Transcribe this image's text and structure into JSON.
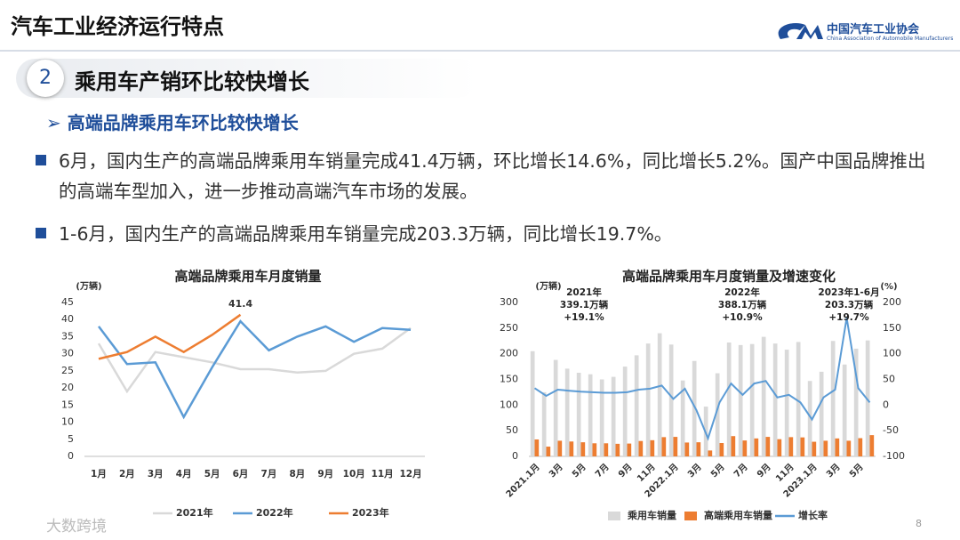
{
  "header": {
    "title": "汽车工业经济运行特点",
    "logo": "中国汽车工业协会",
    "logo_en": "China Association of Automobile Manufacturers"
  },
  "section": {
    "number": "2",
    "title": "乘用车产销环比较快增长"
  },
  "subtitle": "高端品牌乘用车环比较快增长",
  "bullets": [
    "6月，国内生产的高端品牌乘用车销量完成41.4万辆，环比增长14.6%，同比增长5.2%。国产中国品牌推出的高端车型加入，进一步推动高端汽车市场的发展。",
    "1-6月，国内生产的高端品牌乘用车销量完成203.3万辆，同比增长19.7%。"
  ],
  "chart_data": [
    {
      "type": "line",
      "title": "高端品牌乘用车月度销量",
      "y_label": "(万辆)",
      "categories": [
        "1月",
        "2月",
        "3月",
        "4月",
        "5月",
        "6月",
        "7月",
        "8月",
        "9月",
        "10月",
        "11月",
        "12月"
      ],
      "ylim": [
        0,
        45
      ],
      "yticks": [
        0,
        5,
        10,
        15,
        20,
        25,
        30,
        35,
        40,
        45
      ],
      "grid": false,
      "legend": "bottom",
      "series": [
        {
          "name": "2021年",
          "color": "#d9d9d9",
          "values": [
            33,
            19,
            30.5,
            29,
            27.5,
            25.5,
            25.5,
            24.5,
            25,
            30,
            31.5,
            37.5
          ]
        },
        {
          "name": "2022年",
          "color": "#5b9bd5",
          "values": [
            38,
            27,
            27.5,
            11.5,
            26,
            39.5,
            31,
            35,
            38,
            33.5,
            37.5,
            37
          ]
        },
        {
          "name": "2023年",
          "color": "#ed7d31",
          "show_last_label": true,
          "values": [
            28.5,
            30.5,
            35,
            30.5,
            35.5,
            41.4,
            null,
            null,
            null,
            null,
            null,
            null
          ]
        }
      ]
    },
    {
      "type": "bar",
      "title": "高端品牌乘用车月度销量及增速变化",
      "y_label": "(万辆)",
      "y2_label": "(%)",
      "categories": [
        "2021.1月",
        null,
        "3月",
        null,
        "5月",
        null,
        "7月",
        null,
        "9月",
        null,
        "11月",
        null,
        "2022.1月",
        null,
        "3月",
        null,
        "5月",
        null,
        "7月",
        null,
        "9月",
        null,
        "11月",
        null,
        "2023.1月",
        null,
        "3月",
        null,
        "5月",
        null
      ],
      "ylim": [
        0,
        300
      ],
      "yticks": [
        0,
        50,
        100,
        150,
        200,
        250,
        300
      ],
      "y2lim": [
        -100,
        200
      ],
      "y2ticks": [
        -100,
        -50,
        0,
        50,
        100,
        150,
        200
      ],
      "grid": false,
      "legend": "bottom",
      "series": [
        {
          "name": "乘用车销量",
          "color": "#d9d9d9",
          "values": [
            205,
            125,
            188,
            171,
            163,
            160,
            150,
            155,
            175,
            197,
            220,
            240,
            218,
            148,
            186,
            97,
            162,
            222,
            217,
            219,
            233,
            220,
            208,
            223,
            147,
            165,
            225,
            179,
            210,
            226
          ]
        },
        {
          "name": "高端乘用车销量",
          "color": "#ed7d31",
          "values": [
            33,
            19,
            30.5,
            29,
            27.5,
            25.5,
            25.5,
            24.5,
            25,
            30,
            31.5,
            37.5,
            38,
            27,
            27.5,
            11.5,
            26,
            39.5,
            31,
            35,
            38,
            33.5,
            37.5,
            37,
            28.5,
            30.5,
            35,
            30.5,
            35.5,
            41.4
          ]
        },
        {
          "name": "增长率",
          "color": "#5b9bd5",
          "type": "line",
          "axis": "y2",
          "values": [
            33,
            18,
            30,
            28,
            26,
            25,
            24,
            24,
            25,
            30,
            32,
            38,
            12,
            32,
            -10,
            -65,
            5,
            42,
            20,
            42,
            47,
            15,
            20,
            5,
            -28,
            15,
            30,
            170,
            33,
            5
          ]
        }
      ],
      "annotations": [
        [
          "2021年",
          "339.1万辆",
          "+19.1%"
        ],
        [
          "2022年",
          "388.1万辆",
          "+10.9%"
        ],
        [
          "2023年1-6月",
          "203.3万辆",
          "+19.7%"
        ]
      ]
    }
  ],
  "watermark": "大数跨境",
  "page_number": "8"
}
